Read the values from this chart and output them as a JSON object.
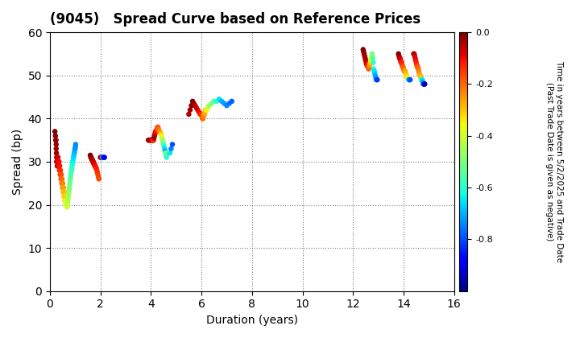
{
  "title": "(9045)   Spread Curve based on Reference Prices",
  "xlabel": "Duration (years)",
  "ylabel": "Spread (bp)",
  "colorbar_label": "Time in years between 5/2/2025 and Trade Date\n(Past Trade Date is given as negative)",
  "xlim": [
    0,
    16
  ],
  "ylim": [
    0,
    60
  ],
  "xticks": [
    0,
    2,
    4,
    6,
    8,
    10,
    12,
    14,
    16
  ],
  "yticks": [
    0,
    10,
    20,
    30,
    40,
    50,
    60
  ],
  "cmap": "jet",
  "clim": [
    -1.0,
    0.0
  ],
  "points": [
    {
      "dur": 0.2,
      "spread": 37,
      "t": 0.0
    },
    {
      "dur": 0.22,
      "spread": 36,
      "t": -0.01
    },
    {
      "dur": 0.23,
      "spread": 35,
      "t": -0.01
    },
    {
      "dur": 0.24,
      "spread": 35,
      "t": -0.02
    },
    {
      "dur": 0.25,
      "spread": 34,
      "t": -0.02
    },
    {
      "dur": 0.25,
      "spread": 33,
      "t": -0.03
    },
    {
      "dur": 0.26,
      "spread": 32,
      "t": -0.03
    },
    {
      "dur": 0.27,
      "spread": 31,
      "t": -0.04
    },
    {
      "dur": 0.27,
      "spread": 30,
      "t": -0.04
    },
    {
      "dur": 0.28,
      "spread": 31,
      "t": -0.05
    },
    {
      "dur": 0.28,
      "spread": 30,
      "t": -0.05
    },
    {
      "dur": 0.29,
      "spread": 29,
      "t": -0.06
    },
    {
      "dur": 0.3,
      "spread": 31,
      "t": -0.06
    },
    {
      "dur": 0.3,
      "spread": 30,
      "t": -0.07
    },
    {
      "dur": 0.31,
      "spread": 29,
      "t": -0.07
    },
    {
      "dur": 0.32,
      "spread": 31,
      "t": -0.08
    },
    {
      "dur": 0.33,
      "spread": 30,
      "t": -0.08
    },
    {
      "dur": 0.34,
      "spread": 30,
      "t": -0.09
    },
    {
      "dur": 0.35,
      "spread": 29,
      "t": -0.09
    },
    {
      "dur": 0.36,
      "spread": 30,
      "t": -0.1
    },
    {
      "dur": 0.37,
      "spread": 29,
      "t": -0.1
    },
    {
      "dur": 0.38,
      "spread": 28,
      "t": -0.11
    },
    {
      "dur": 0.39,
      "spread": 29,
      "t": -0.11
    },
    {
      "dur": 0.4,
      "spread": 28,
      "t": -0.12
    },
    {
      "dur": 0.41,
      "spread": 27,
      "t": -0.13
    },
    {
      "dur": 0.42,
      "spread": 28,
      "t": -0.14
    },
    {
      "dur": 0.43,
      "spread": 27,
      "t": -0.15
    },
    {
      "dur": 0.44,
      "spread": 26,
      "t": -0.16
    },
    {
      "dur": 0.45,
      "spread": 27,
      "t": -0.17
    },
    {
      "dur": 0.46,
      "spread": 26,
      "t": -0.18
    },
    {
      "dur": 0.47,
      "spread": 25,
      "t": -0.19
    },
    {
      "dur": 0.48,
      "spread": 26,
      "t": -0.2
    },
    {
      "dur": 0.49,
      "spread": 25,
      "t": -0.21
    },
    {
      "dur": 0.5,
      "spread": 24,
      "t": -0.22
    },
    {
      "dur": 0.51,
      "spread": 25,
      "t": -0.23
    },
    {
      "dur": 0.52,
      "spread": 24,
      "t": -0.24
    },
    {
      "dur": 0.53,
      "spread": 23,
      "t": -0.25
    },
    {
      "dur": 0.54,
      "spread": 24,
      "t": -0.26
    },
    {
      "dur": 0.55,
      "spread": 23,
      "t": -0.27
    },
    {
      "dur": 0.56,
      "spread": 22,
      "t": -0.28
    },
    {
      "dur": 0.57,
      "spread": 23,
      "t": -0.29
    },
    {
      "dur": 0.58,
      "spread": 22,
      "t": -0.3
    },
    {
      "dur": 0.59,
      "spread": 21,
      "t": -0.31
    },
    {
      "dur": 0.6,
      "spread": 22,
      "t": -0.32
    },
    {
      "dur": 0.61,
      "spread": 21,
      "t": -0.33
    },
    {
      "dur": 0.62,
      "spread": 20.5,
      "t": -0.34
    },
    {
      "dur": 0.63,
      "spread": 21,
      "t": -0.35
    },
    {
      "dur": 0.64,
      "spread": 20,
      "t": -0.36
    },
    {
      "dur": 0.65,
      "spread": 20,
      "t": -0.37
    },
    {
      "dur": 0.66,
      "spread": 20.5,
      "t": -0.38
    },
    {
      "dur": 0.67,
      "spread": 20,
      "t": -0.39
    },
    {
      "dur": 0.68,
      "spread": 19.5,
      "t": -0.4
    },
    {
      "dur": 0.69,
      "spread": 20,
      "t": -0.41
    },
    {
      "dur": 0.7,
      "spread": 20.5,
      "t": -0.42
    },
    {
      "dur": 0.71,
      "spread": 21,
      "t": -0.43
    },
    {
      "dur": 0.72,
      "spread": 21.5,
      "t": -0.44
    },
    {
      "dur": 0.73,
      "spread": 22,
      "t": -0.45
    },
    {
      "dur": 0.74,
      "spread": 22.5,
      "t": -0.46
    },
    {
      "dur": 0.75,
      "spread": 23,
      "t": -0.47
    },
    {
      "dur": 0.76,
      "spread": 23.5,
      "t": -0.48
    },
    {
      "dur": 0.77,
      "spread": 24,
      "t": -0.49
    },
    {
      "dur": 0.78,
      "spread": 24.5,
      "t": -0.5
    },
    {
      "dur": 0.79,
      "spread": 25,
      "t": -0.51
    },
    {
      "dur": 0.8,
      "spread": 25.5,
      "t": -0.52
    },
    {
      "dur": 0.81,
      "spread": 26,
      "t": -0.53
    },
    {
      "dur": 0.82,
      "spread": 26.5,
      "t": -0.54
    },
    {
      "dur": 0.83,
      "spread": 27,
      "t": -0.55
    },
    {
      "dur": 0.84,
      "spread": 27.5,
      "t": -0.56
    },
    {
      "dur": 0.85,
      "spread": 28,
      "t": -0.57
    },
    {
      "dur": 0.86,
      "spread": 28,
      "t": -0.58
    },
    {
      "dur": 0.87,
      "spread": 28.5,
      "t": -0.59
    },
    {
      "dur": 0.88,
      "spread": 29,
      "t": -0.6
    },
    {
      "dur": 0.89,
      "spread": 29.5,
      "t": -0.61
    },
    {
      "dur": 0.9,
      "spread": 30,
      "t": -0.62
    },
    {
      "dur": 0.91,
      "spread": 30,
      "t": -0.63
    },
    {
      "dur": 0.92,
      "spread": 30.5,
      "t": -0.64
    },
    {
      "dur": 0.93,
      "spread": 31,
      "t": -0.65
    },
    {
      "dur": 0.94,
      "spread": 31,
      "t": -0.66
    },
    {
      "dur": 0.95,
      "spread": 31.5,
      "t": -0.67
    },
    {
      "dur": 0.96,
      "spread": 32,
      "t": -0.68
    },
    {
      "dur": 0.97,
      "spread": 32,
      "t": -0.69
    },
    {
      "dur": 0.98,
      "spread": 32.5,
      "t": -0.7
    },
    {
      "dur": 0.99,
      "spread": 33,
      "t": -0.71
    },
    {
      "dur": 1.0,
      "spread": 33,
      "t": -0.72
    },
    {
      "dur": 1.01,
      "spread": 33.5,
      "t": -0.73
    },
    {
      "dur": 1.02,
      "spread": 34,
      "t": -0.74
    },
    {
      "dur": 1.6,
      "spread": 31.5,
      "t": 0.0
    },
    {
      "dur": 1.62,
      "spread": 31,
      "t": -0.01
    },
    {
      "dur": 1.64,
      "spread": 31,
      "t": -0.02
    },
    {
      "dur": 1.66,
      "spread": 30.5,
      "t": -0.03
    },
    {
      "dur": 1.68,
      "spread": 30.5,
      "t": -0.04
    },
    {
      "dur": 1.7,
      "spread": 30,
      "t": -0.05
    },
    {
      "dur": 1.72,
      "spread": 30,
      "t": -0.06
    },
    {
      "dur": 1.74,
      "spread": 29.5,
      "t": -0.07
    },
    {
      "dur": 1.76,
      "spread": 29.5,
      "t": -0.08
    },
    {
      "dur": 1.78,
      "spread": 29,
      "t": -0.09
    },
    {
      "dur": 1.8,
      "spread": 29,
      "t": -0.1
    },
    {
      "dur": 1.82,
      "spread": 28.5,
      "t": -0.11
    },
    {
      "dur": 1.84,
      "spread": 28.5,
      "t": -0.12
    },
    {
      "dur": 1.86,
      "spread": 28,
      "t": -0.13
    },
    {
      "dur": 1.88,
      "spread": 27.5,
      "t": -0.14
    },
    {
      "dur": 1.9,
      "spread": 27,
      "t": -0.15
    },
    {
      "dur": 1.92,
      "spread": 26.5,
      "t": -0.16
    },
    {
      "dur": 1.94,
      "spread": 26,
      "t": -0.17
    },
    {
      "dur": 2.0,
      "spread": 31,
      "t": 0.0
    },
    {
      "dur": 2.02,
      "spread": 31,
      "t": -0.02
    },
    {
      "dur": 2.04,
      "spread": 31,
      "t": -0.04
    },
    {
      "dur": 2.05,
      "spread": 31,
      "t": -0.06
    },
    {
      "dur": 2.06,
      "spread": 31,
      "t": -0.08
    },
    {
      "dur": 2.07,
      "spread": 31,
      "t": -0.1
    },
    {
      "dur": 2.08,
      "spread": 31,
      "t": -0.65
    },
    {
      "dur": 2.09,
      "spread": 31,
      "t": -0.7
    },
    {
      "dur": 2.1,
      "spread": 31,
      "t": -0.75
    },
    {
      "dur": 2.12,
      "spread": 31,
      "t": -0.8
    },
    {
      "dur": 2.14,
      "spread": 31,
      "t": -0.85
    },
    {
      "dur": 2.16,
      "spread": 31,
      "t": -0.9
    },
    {
      "dur": 3.9,
      "spread": 35,
      "t": 0.0
    },
    {
      "dur": 3.92,
      "spread": 35,
      "t": -0.01
    },
    {
      "dur": 3.94,
      "spread": 35,
      "t": -0.02
    },
    {
      "dur": 3.96,
      "spread": 35,
      "t": -0.03
    },
    {
      "dur": 3.98,
      "spread": 35,
      "t": -0.04
    },
    {
      "dur": 4.0,
      "spread": 35,
      "t": -0.05
    },
    {
      "dur": 4.02,
      "spread": 35,
      "t": -0.06
    },
    {
      "dur": 4.04,
      "spread": 35,
      "t": -0.07
    },
    {
      "dur": 4.05,
      "spread": 35,
      "t": -0.08
    },
    {
      "dur": 4.06,
      "spread": 35,
      "t": -0.09
    },
    {
      "dur": 4.07,
      "spread": 35,
      "t": -0.1
    },
    {
      "dur": 4.08,
      "spread": 35,
      "t": -0.11
    },
    {
      "dur": 4.09,
      "spread": 35,
      "t": -0.12
    },
    {
      "dur": 4.1,
      "spread": 35,
      "t": -0.13
    },
    {
      "dur": 4.11,
      "spread": 35,
      "t": -0.14
    },
    {
      "dur": 4.12,
      "spread": 35.5,
      "t": -0.02
    },
    {
      "dur": 4.14,
      "spread": 36,
      "t": -0.04
    },
    {
      "dur": 4.16,
      "spread": 36.5,
      "t": -0.06
    },
    {
      "dur": 4.18,
      "spread": 37,
      "t": -0.08
    },
    {
      "dur": 4.2,
      "spread": 37,
      "t": -0.1
    },
    {
      "dur": 4.22,
      "spread": 37,
      "t": -0.12
    },
    {
      "dur": 4.24,
      "spread": 37.5,
      "t": -0.14
    },
    {
      "dur": 4.26,
      "spread": 38,
      "t": -0.16
    },
    {
      "dur": 4.28,
      "spread": 38,
      "t": -0.18
    },
    {
      "dur": 4.3,
      "spread": 37.5,
      "t": -0.2
    },
    {
      "dur": 4.35,
      "spread": 37,
      "t": -0.25
    },
    {
      "dur": 4.4,
      "spread": 36.5,
      "t": -0.3
    },
    {
      "dur": 4.42,
      "spread": 36,
      "t": -0.35
    },
    {
      "dur": 4.44,
      "spread": 35.5,
      "t": -0.4
    },
    {
      "dur": 4.46,
      "spread": 35,
      "t": -0.45
    },
    {
      "dur": 4.48,
      "spread": 34.5,
      "t": -0.5
    },
    {
      "dur": 4.5,
      "spread": 34,
      "t": -0.55
    },
    {
      "dur": 4.52,
      "spread": 33.5,
      "t": -0.6
    },
    {
      "dur": 4.54,
      "spread": 33,
      "t": -0.65
    },
    {
      "dur": 4.56,
      "spread": 32.5,
      "t": -0.7
    },
    {
      "dur": 4.58,
      "spread": 32,
      "t": -0.5
    },
    {
      "dur": 4.6,
      "spread": 31.5,
      "t": -0.55
    },
    {
      "dur": 4.62,
      "spread": 31,
      "t": -0.6
    },
    {
      "dur": 4.75,
      "spread": 32,
      "t": -0.65
    },
    {
      "dur": 4.8,
      "spread": 33,
      "t": -0.75
    },
    {
      "dur": 4.85,
      "spread": 34,
      "t": -0.8
    },
    {
      "dur": 5.5,
      "spread": 41,
      "t": -0.05
    },
    {
      "dur": 5.55,
      "spread": 42,
      "t": -0.03
    },
    {
      "dur": 5.6,
      "spread": 43,
      "t": -0.01
    },
    {
      "dur": 5.65,
      "spread": 44,
      "t": 0.0
    },
    {
      "dur": 5.7,
      "spread": 43.5,
      "t": -0.02
    },
    {
      "dur": 5.75,
      "spread": 43,
      "t": -0.04
    },
    {
      "dur": 5.8,
      "spread": 42.5,
      "t": -0.06
    },
    {
      "dur": 5.85,
      "spread": 42,
      "t": -0.08
    },
    {
      "dur": 5.9,
      "spread": 41.5,
      "t": -0.1
    },
    {
      "dur": 5.95,
      "spread": 41,
      "t": -0.12
    },
    {
      "dur": 6.0,
      "spread": 41,
      "t": -0.14
    },
    {
      "dur": 6.02,
      "spread": 40.5,
      "t": -0.16
    },
    {
      "dur": 6.04,
      "spread": 40,
      "t": -0.18
    },
    {
      "dur": 6.06,
      "spread": 40,
      "t": -0.2
    },
    {
      "dur": 6.08,
      "spread": 40.5,
      "t": -0.22
    },
    {
      "dur": 6.1,
      "spread": 41,
      "t": -0.24
    },
    {
      "dur": 6.12,
      "spread": 41,
      "t": -0.26
    },
    {
      "dur": 6.14,
      "spread": 41.5,
      "t": -0.28
    },
    {
      "dur": 6.16,
      "spread": 42,
      "t": -0.3
    },
    {
      "dur": 6.2,
      "spread": 42,
      "t": -0.35
    },
    {
      "dur": 6.25,
      "spread": 42.5,
      "t": -0.4
    },
    {
      "dur": 6.3,
      "spread": 43,
      "t": -0.45
    },
    {
      "dur": 6.4,
      "spread": 43.5,
      "t": -0.5
    },
    {
      "dur": 6.5,
      "spread": 44,
      "t": -0.55
    },
    {
      "dur": 6.6,
      "spread": 44,
      "t": -0.6
    },
    {
      "dur": 6.7,
      "spread": 44.5,
      "t": -0.65
    },
    {
      "dur": 6.8,
      "spread": 44,
      "t": -0.7
    },
    {
      "dur": 6.9,
      "spread": 43.5,
      "t": -0.72
    },
    {
      "dur": 7.0,
      "spread": 43,
      "t": -0.74
    },
    {
      "dur": 7.1,
      "spread": 43.5,
      "t": -0.76
    },
    {
      "dur": 7.2,
      "spread": 44,
      "t": -0.78
    },
    {
      "dur": 12.4,
      "spread": 56,
      "t": 0.0
    },
    {
      "dur": 12.42,
      "spread": 55.5,
      "t": -0.01
    },
    {
      "dur": 12.44,
      "spread": 55,
      "t": -0.02
    },
    {
      "dur": 12.46,
      "spread": 54.5,
      "t": -0.03
    },
    {
      "dur": 12.48,
      "spread": 54,
      "t": -0.04
    },
    {
      "dur": 12.5,
      "spread": 53.5,
      "t": -0.05
    },
    {
      "dur": 12.52,
      "spread": 53,
      "t": -0.06
    },
    {
      "dur": 12.54,
      "spread": 52.5,
      "t": -0.08
    },
    {
      "dur": 12.56,
      "spread": 52.5,
      "t": -0.1
    },
    {
      "dur": 12.58,
      "spread": 52,
      "t": -0.12
    },
    {
      "dur": 12.6,
      "spread": 52,
      "t": -0.15
    },
    {
      "dur": 12.62,
      "spread": 51.5,
      "t": -0.18
    },
    {
      "dur": 12.64,
      "spread": 52,
      "t": -0.22
    },
    {
      "dur": 12.66,
      "spread": 52.5,
      "t": -0.26
    },
    {
      "dur": 12.68,
      "spread": 53,
      "t": -0.3
    },
    {
      "dur": 12.7,
      "spread": 53.5,
      "t": -0.35
    },
    {
      "dur": 12.72,
      "spread": 54,
      "t": -0.4
    },
    {
      "dur": 12.74,
      "spread": 54.5,
      "t": -0.45
    },
    {
      "dur": 12.76,
      "spread": 55,
      "t": -0.5
    },
    {
      "dur": 12.78,
      "spread": 54,
      "t": -0.55
    },
    {
      "dur": 12.8,
      "spread": 53,
      "t": -0.6
    },
    {
      "dur": 12.82,
      "spread": 51.5,
      "t": -0.62
    },
    {
      "dur": 12.84,
      "spread": 51,
      "t": -0.65
    },
    {
      "dur": 12.86,
      "spread": 50.5,
      "t": -0.67
    },
    {
      "dur": 12.88,
      "spread": 50,
      "t": -0.7
    },
    {
      "dur": 12.9,
      "spread": 49.5,
      "t": -0.72
    },
    {
      "dur": 12.92,
      "spread": 49,
      "t": -0.75
    },
    {
      "dur": 12.94,
      "spread": 49,
      "t": -0.78
    },
    {
      "dur": 12.96,
      "spread": 49,
      "t": -0.82
    },
    {
      "dur": 13.8,
      "spread": 55,
      "t": 0.0
    },
    {
      "dur": 13.82,
      "spread": 54.5,
      "t": -0.02
    },
    {
      "dur": 13.84,
      "spread": 54,
      "t": -0.04
    },
    {
      "dur": 13.86,
      "spread": 54,
      "t": -0.06
    },
    {
      "dur": 13.88,
      "spread": 53.5,
      "t": -0.08
    },
    {
      "dur": 13.9,
      "spread": 53,
      "t": -0.1
    },
    {
      "dur": 13.92,
      "spread": 53,
      "t": -0.12
    },
    {
      "dur": 13.94,
      "spread": 52.5,
      "t": -0.14
    },
    {
      "dur": 13.96,
      "spread": 52,
      "t": -0.16
    },
    {
      "dur": 13.98,
      "spread": 52,
      "t": -0.18
    },
    {
      "dur": 14.0,
      "spread": 51.5,
      "t": -0.2
    },
    {
      "dur": 14.02,
      "spread": 51,
      "t": -0.22
    },
    {
      "dur": 14.04,
      "spread": 51,
      "t": -0.24
    },
    {
      "dur": 14.06,
      "spread": 51,
      "t": -0.26
    },
    {
      "dur": 14.08,
      "spread": 50.5,
      "t": -0.28
    },
    {
      "dur": 14.1,
      "spread": 50,
      "t": -0.3
    },
    {
      "dur": 14.12,
      "spread": 50,
      "t": -0.32
    },
    {
      "dur": 14.14,
      "spread": 49.5,
      "t": -0.34
    },
    {
      "dur": 14.2,
      "spread": 49,
      "t": -0.65
    },
    {
      "dur": 14.22,
      "spread": 49,
      "t": -0.7
    },
    {
      "dur": 14.24,
      "spread": 49,
      "t": -0.75
    },
    {
      "dur": 14.26,
      "spread": 49,
      "t": -0.8
    },
    {
      "dur": 14.4,
      "spread": 55,
      "t": -0.02
    },
    {
      "dur": 14.42,
      "spread": 55,
      "t": -0.04
    },
    {
      "dur": 14.44,
      "spread": 54.5,
      "t": -0.06
    },
    {
      "dur": 14.46,
      "spread": 54,
      "t": -0.08
    },
    {
      "dur": 14.48,
      "spread": 53.5,
      "t": -0.1
    },
    {
      "dur": 14.5,
      "spread": 53,
      "t": -0.12
    },
    {
      "dur": 14.52,
      "spread": 52.5,
      "t": -0.14
    },
    {
      "dur": 14.54,
      "spread": 52,
      "t": -0.16
    },
    {
      "dur": 14.56,
      "spread": 52,
      "t": -0.18
    },
    {
      "dur": 14.58,
      "spread": 51.5,
      "t": -0.2
    },
    {
      "dur": 14.6,
      "spread": 51,
      "t": -0.22
    },
    {
      "dur": 14.62,
      "spread": 50.5,
      "t": -0.24
    },
    {
      "dur": 14.64,
      "spread": 50,
      "t": -0.26
    },
    {
      "dur": 14.66,
      "spread": 50,
      "t": -0.28
    },
    {
      "dur": 14.68,
      "spread": 49.5,
      "t": -0.3
    },
    {
      "dur": 14.7,
      "spread": 49,
      "t": -0.55
    },
    {
      "dur": 14.72,
      "spread": 49,
      "t": -0.6
    },
    {
      "dur": 14.74,
      "spread": 49,
      "t": -0.65
    },
    {
      "dur": 14.76,
      "spread": 48.5,
      "t": -0.7
    },
    {
      "dur": 14.78,
      "spread": 48,
      "t": -0.75
    },
    {
      "dur": 14.8,
      "spread": 48,
      "t": -0.8
    },
    {
      "dur": 14.82,
      "spread": 48,
      "t": -0.9
    },
    {
      "dur": 14.84,
      "spread": 48,
      "t": -0.95
    }
  ]
}
